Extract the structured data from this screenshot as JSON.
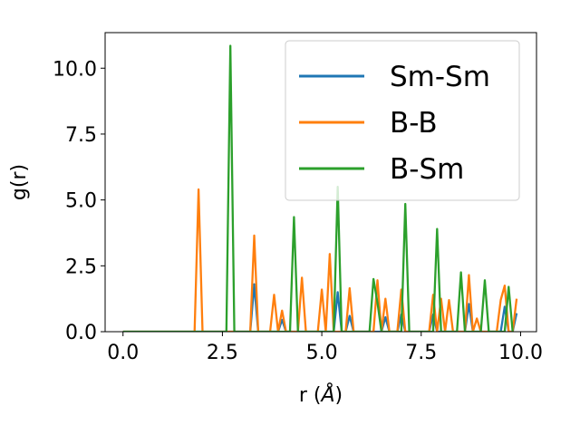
{
  "chart_data": {
    "type": "line",
    "xlabel": "r (",
    "xlabel_unit": "Å",
    "xlabel_close": ")",
    "ylabel": "g(r)",
    "xlim": [
      -0.45,
      10.4
    ],
    "ylim": [
      0,
      11.35
    ],
    "xticks": [
      0.0,
      2.5,
      5.0,
      7.5,
      10.0
    ],
    "xtick_labels": [
      "0.0",
      "2.5",
      "5.0",
      "7.5",
      "10.0"
    ],
    "yticks": [
      0.0,
      2.5,
      5.0,
      7.5,
      10.0
    ],
    "ytick_labels": [
      "0.0",
      "2.5",
      "5.0",
      "7.5",
      "10.0"
    ],
    "grid": false,
    "legend_position": "top-right",
    "series": [
      {
        "name": "Sm-Sm",
        "color": "#1f77b4",
        "x": [
          0.0,
          3.2,
          3.3,
          3.4,
          3.9,
          4.0,
          4.1,
          5.3,
          5.4,
          5.5,
          5.6,
          5.7,
          5.8,
          6.5,
          6.6,
          6.7,
          6.9,
          7.0,
          7.1,
          7.7,
          7.8,
          7.9,
          8.6,
          8.7,
          8.8,
          9.5,
          9.6,
          9.7,
          9.8,
          9.9
        ],
        "y": [
          0.0,
          0.0,
          1.8,
          0.0,
          0.0,
          0.45,
          0.0,
          0.0,
          1.5,
          0.0,
          0.0,
          0.6,
          0.0,
          0.0,
          0.55,
          0.0,
          0.0,
          0.65,
          0.0,
          0.0,
          0.65,
          0.0,
          0.0,
          1.05,
          0.0,
          0.0,
          0.95,
          0.0,
          0.0,
          0.7
        ]
      },
      {
        "name": "B-B",
        "color": "#ff7f0e",
        "x": [
          0.0,
          1.8,
          1.9,
          2.0,
          3.2,
          3.3,
          3.4,
          3.7,
          3.8,
          3.9,
          4.0,
          4.1,
          4.4,
          4.5,
          4.6,
          4.9,
          5.0,
          5.1,
          5.2,
          5.3,
          5.6,
          5.7,
          5.8,
          6.3,
          6.4,
          6.5,
          6.6,
          6.7,
          6.9,
          7.0,
          7.1,
          7.7,
          7.8,
          7.9,
          8.0,
          8.1,
          8.2,
          8.3,
          8.6,
          8.7,
          8.8,
          8.9,
          9.0,
          9.4,
          9.5,
          9.6,
          9.7,
          9.8,
          9.9
        ],
        "y": [
          0.0,
          0.0,
          5.4,
          0.0,
          0.0,
          3.65,
          0.0,
          0.0,
          1.4,
          0.0,
          0.8,
          0.0,
          0.0,
          2.05,
          0.0,
          0.0,
          1.6,
          0.0,
          2.95,
          0.0,
          0.0,
          1.65,
          0.0,
          0.0,
          1.95,
          0.0,
          1.25,
          0.0,
          0.0,
          1.6,
          0.0,
          0.0,
          1.4,
          0.0,
          1.25,
          0.0,
          1.2,
          0.0,
          0.0,
          2.15,
          0.0,
          0.5,
          0.0,
          0.0,
          1.2,
          1.75,
          0.0,
          0.0,
          1.25
        ]
      },
      {
        "name": "B-Sm",
        "color": "#2ca02c",
        "x": [
          0.0,
          2.6,
          2.7,
          2.8,
          4.2,
          4.3,
          4.4,
          5.3,
          5.4,
          5.5,
          6.2,
          6.3,
          6.4,
          6.5,
          7.0,
          7.1,
          7.2,
          7.8,
          7.9,
          8.0,
          8.4,
          8.5,
          8.6,
          9.0,
          9.1,
          9.2,
          9.6,
          9.7,
          9.8
        ],
        "y": [
          0.0,
          0.0,
          10.85,
          0.0,
          0.0,
          4.35,
          0.0,
          0.0,
          5.5,
          0.0,
          0.0,
          2.0,
          1.1,
          0.0,
          0.0,
          4.85,
          0.0,
          0.0,
          3.9,
          0.0,
          0.0,
          2.25,
          0.0,
          0.0,
          1.95,
          0.0,
          0.0,
          1.7,
          0.0
        ]
      }
    ]
  }
}
